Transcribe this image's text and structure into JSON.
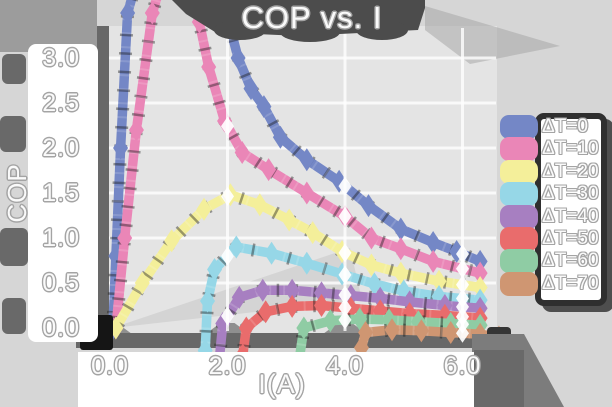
{
  "chart_data": {
    "type": "line",
    "title": "COP vs. I",
    "xlabel": "I(A)",
    "ylabel": "COP",
    "x_ticks": [
      0.0,
      2.0,
      4.0,
      6.0
    ],
    "x_tick_labels": [
      "0.0",
      "2.0",
      "4.0",
      "6.0"
    ],
    "y_ticks": [
      0.0,
      0.5,
      1.0,
      1.5,
      2.0,
      2.5,
      3.0
    ],
    "y_tick_labels": [
      "0.0",
      "0.5",
      "1.0",
      "1.5",
      "2.0",
      "2.5",
      "3.0"
    ],
    "xlim": [
      -0.1,
      6.8
    ],
    "ylim": [
      0,
      3.4
    ],
    "grid": true,
    "legend_position": "right",
    "marker": "thin-diamond",
    "series": [
      {
        "name": "ΔT=0",
        "color": "#7487c6",
        "points": [
          [
            0.05,
            0
          ],
          [
            0.1,
            0.8
          ],
          [
            0.18,
            2.0
          ],
          [
            0.3,
            3.5
          ],
          [
            0.42,
            3.78
          ],
          [
            1.8,
            3.78
          ],
          [
            2.02,
            3.4
          ],
          [
            2.18,
            3.0
          ],
          [
            2.4,
            2.66
          ],
          [
            2.62,
            2.46
          ],
          [
            2.9,
            2.12
          ],
          [
            3.35,
            1.87
          ],
          [
            3.9,
            1.63
          ],
          [
            4.4,
            1.36
          ],
          [
            4.95,
            1.1
          ],
          [
            5.5,
            0.95
          ],
          [
            5.9,
            0.85
          ],
          [
            6.3,
            0.74
          ]
        ]
      },
      {
        "name": "ΔT=10",
        "color": "#ea86b7",
        "points": [
          [
            0.1,
            0
          ],
          [
            0.25,
            1.0
          ],
          [
            0.45,
            2.2
          ],
          [
            0.72,
            3.5
          ],
          [
            0.85,
            3.78
          ],
          [
            1.35,
            3.78
          ],
          [
            1.52,
            3.4
          ],
          [
            1.68,
            2.9
          ],
          [
            1.95,
            2.3
          ],
          [
            2.25,
            1.95
          ],
          [
            2.7,
            1.76
          ],
          [
            3.35,
            1.5
          ],
          [
            4.0,
            1.24
          ],
          [
            4.45,
            1.0
          ],
          [
            4.95,
            0.88
          ],
          [
            5.5,
            0.74
          ],
          [
            6.3,
            0.61
          ]
        ]
      },
      {
        "name": "ΔT=20",
        "color": "#f4ef9a",
        "points": [
          [
            0.1,
            0
          ],
          [
            0.55,
            0.5
          ],
          [
            1.05,
            0.97
          ],
          [
            1.6,
            1.32
          ],
          [
            2.05,
            1.48
          ],
          [
            2.55,
            1.37
          ],
          [
            3.05,
            1.2
          ],
          [
            3.45,
            1.06
          ],
          [
            3.95,
            0.85
          ],
          [
            4.45,
            0.7
          ],
          [
            4.95,
            0.61
          ],
          [
            5.6,
            0.52
          ],
          [
            6.3,
            0.45
          ]
        ]
      },
      {
        "name": "ΔT=30",
        "color": "#96d7e7",
        "points": [
          [
            1.62,
            -0.25
          ],
          [
            1.66,
            0.3
          ],
          [
            1.78,
            0.65
          ],
          [
            2.15,
            0.9
          ],
          [
            2.75,
            0.83
          ],
          [
            3.35,
            0.72
          ],
          [
            3.95,
            0.6
          ],
          [
            4.5,
            0.49
          ],
          [
            5.0,
            0.41
          ],
          [
            5.6,
            0.35
          ],
          [
            6.3,
            0.31
          ]
        ]
      },
      {
        "name": "ΔT=40",
        "color": "#a77fc1",
        "points": [
          [
            1.86,
            -0.35
          ],
          [
            1.92,
            0.05
          ],
          [
            2.2,
            0.34
          ],
          [
            2.6,
            0.42
          ],
          [
            3.1,
            0.42
          ],
          [
            3.6,
            0.39
          ],
          [
            4.1,
            0.36
          ],
          [
            4.6,
            0.33
          ],
          [
            5.1,
            0.29
          ],
          [
            5.7,
            0.25
          ],
          [
            6.3,
            0.22
          ]
        ]
      },
      {
        "name": "ΔT=50",
        "color": "#e96c6c",
        "points": [
          [
            2.26,
            -0.3
          ],
          [
            2.32,
            0.0
          ],
          [
            2.65,
            0.18
          ],
          [
            3.1,
            0.24
          ],
          [
            3.6,
            0.25
          ],
          [
            4.1,
            0.22
          ],
          [
            4.6,
            0.19
          ],
          [
            5.1,
            0.16
          ],
          [
            5.7,
            0.14
          ],
          [
            6.3,
            0.11
          ]
        ]
      },
      {
        "name": "ΔT=60",
        "color": "#8fcca4",
        "points": [
          [
            3.22,
            -0.35
          ],
          [
            3.3,
            0.0
          ],
          [
            3.75,
            0.08
          ],
          [
            4.25,
            0.1
          ],
          [
            4.75,
            0.09
          ],
          [
            5.25,
            0.07
          ],
          [
            5.8,
            0.05
          ],
          [
            6.3,
            0.03
          ]
        ]
      },
      {
        "name": "ΔT=70",
        "color": "#cf9672",
        "points": [
          [
            4.28,
            -0.22
          ],
          [
            4.35,
            -0.05
          ],
          [
            4.8,
            -0.02
          ],
          [
            5.3,
            -0.03
          ],
          [
            5.8,
            -0.05
          ],
          [
            6.3,
            -0.07
          ],
          [
            6.62,
            -0.1
          ]
        ]
      }
    ]
  },
  "colors": {
    "figure_bg": "#d6d6d6",
    "plot_bg": "#e4e4e4",
    "shadow_dark": "#4c4c4c",
    "spine": "#686868",
    "black_blob": "#151515",
    "text": "#fafafa",
    "text_outline": "#a4a4a4"
  }
}
